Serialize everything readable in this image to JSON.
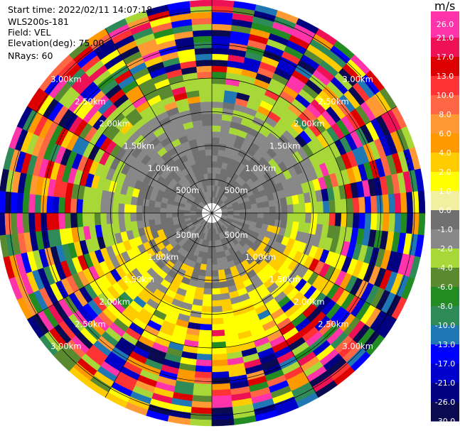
{
  "info": {
    "start_time": "Start time: 2022/02/11 14:07:18",
    "instrument": "WLS200s-181",
    "field": "Field: VEL",
    "elevation": "Elevation(deg): 75.00",
    "nrays": "NRays: 60"
  },
  "chart_data": {
    "type": "heatmap",
    "projection": "polar (PPI)",
    "field": "VEL",
    "units": "m/s",
    "elevation_deg": 75.0,
    "n_rays": 60,
    "range_rings_km": [
      "500m",
      "1.00km",
      "1.50km",
      "2.00km",
      "2.50km",
      "3.00km"
    ],
    "colorbar_ticks": [
      "26.0",
      "21.0",
      "17.0",
      "13.0",
      "10.0",
      "8.0",
      "6.0",
      "4.0",
      "2.0",
      "1.0",
      "0.0",
      "-1.0",
      "-2.0",
      "-4.0",
      "-6.0",
      "-8.0",
      "-10.0",
      "-13.0",
      "-17.0",
      "-21.0",
      "-26.0",
      "-30.0"
    ],
    "colorbar_colors": [
      "#ff33aa",
      "#ee1155",
      "#dd0000",
      "#ff3333",
      "#ff6644",
      "#ff9933",
      "#ff9900",
      "#ffcc00",
      "#ffff00",
      "#f0f0a0",
      "#707070",
      "#888888",
      "#a8d838",
      "#5a8a30",
      "#228b22",
      "#2e8b57",
      "#1f77b4",
      "#0000ff",
      "#0000cc",
      "#000080",
      "#0a0a50",
      "#0a0a50"
    ],
    "grid": true
  }
}
